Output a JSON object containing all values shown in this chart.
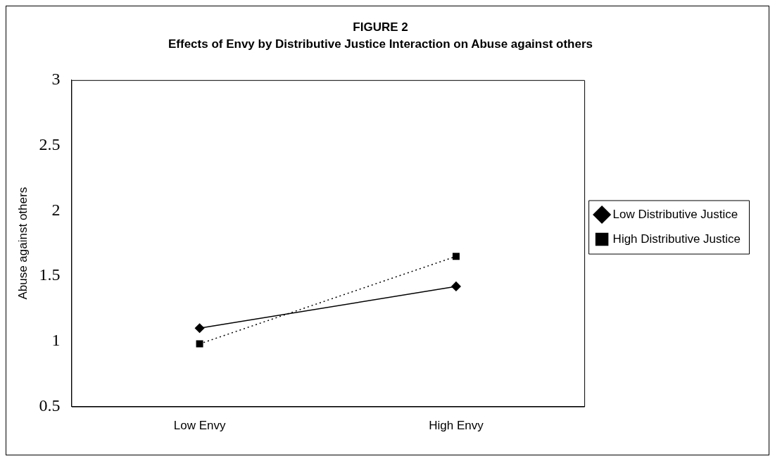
{
  "chart_data": {
    "type": "line",
    "title": "FIGURE 2",
    "subtitle": "Effects of Envy by Distributive Justice Interaction on Abuse against others",
    "ylabel": "Abuse against others",
    "categories": [
      "Low Envy",
      "High Envy"
    ],
    "series": [
      {
        "name": "Low Distributive Justice",
        "color": "#000000",
        "values": [
          1.1,
          1.42
        ],
        "marker": "diamond",
        "line_style": "solid"
      },
      {
        "name": "High Distributive Justice",
        "color": "#000000",
        "values": [
          0.98,
          1.65
        ],
        "marker": "square",
        "line_style": "dotted"
      }
    ],
    "ylim": [
      0.5,
      3
    ],
    "yticks": [
      0.5,
      1,
      1.5,
      2,
      2.5,
      3
    ],
    "grid": false,
    "legend": "right"
  }
}
